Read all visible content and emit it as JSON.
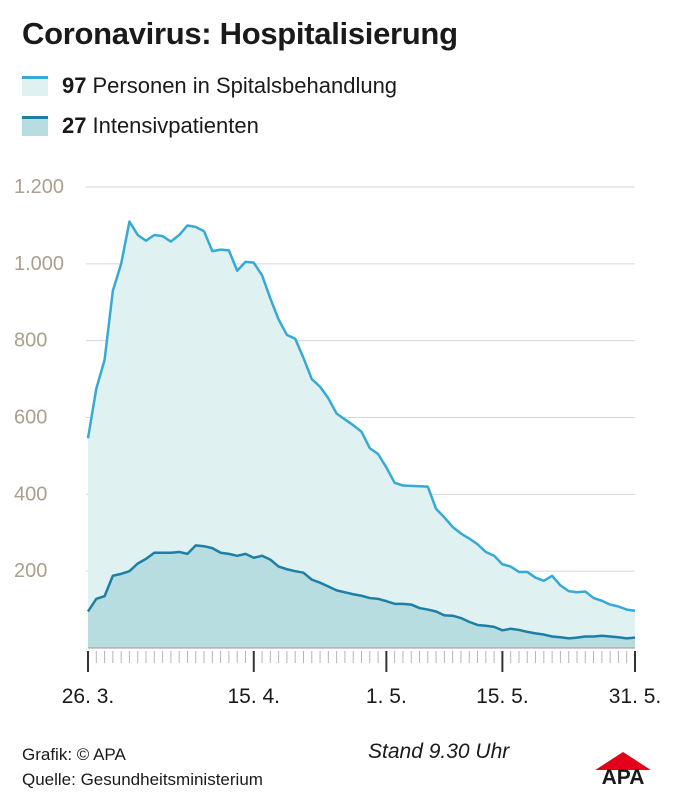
{
  "title": "Coronavirus: Hospitalisierung",
  "legend": [
    {
      "value": "97",
      "label": "Personen in Spitalsbehandlung"
    },
    {
      "value": "27",
      "label": "Intensivpatienten"
    }
  ],
  "footer": {
    "grafik": "Grafik: © APA",
    "quelle": "Quelle: Gesundheitsministerium",
    "stand": "Stand 9.30 Uhr"
  },
  "logo_text": "APA",
  "colors": {
    "hosp_line": "#36a9d6",
    "hosp_fill": "#dff2f1",
    "icu_line": "#1e7fa6",
    "icu_fill": "#b7dde1",
    "grid": "#d6d6d6",
    "ytick": "#a9a08e",
    "logo_red": "#e2001a"
  },
  "chart_data": {
    "type": "area",
    "ylim": [
      0,
      1200
    ],
    "yticks": [
      200,
      400,
      600,
      800,
      1000,
      1200
    ],
    "ytick_labels": [
      "200",
      "400",
      "600",
      "800",
      "1.000",
      "1.200"
    ],
    "xlim": [
      "2020-03-26",
      "2020-05-31"
    ],
    "xtick_labels": [
      {
        "date": "2020-03-26",
        "label": "26. 3."
      },
      {
        "date": "2020-04-15",
        "label": "15. 4."
      },
      {
        "date": "2020-05-01",
        "label": "1. 5."
      },
      {
        "date": "2020-05-15",
        "label": "15. 5."
      },
      {
        "date": "2020-05-31",
        "label": "31. 5."
      }
    ],
    "x": [
      "2020-03-26",
      "2020-03-27",
      "2020-03-28",
      "2020-03-29",
      "2020-03-30",
      "2020-03-31",
      "2020-04-01",
      "2020-04-02",
      "2020-04-03",
      "2020-04-04",
      "2020-04-05",
      "2020-04-06",
      "2020-04-07",
      "2020-04-08",
      "2020-04-09",
      "2020-04-10",
      "2020-04-11",
      "2020-04-12",
      "2020-04-13",
      "2020-04-14",
      "2020-04-15",
      "2020-04-16",
      "2020-04-17",
      "2020-04-18",
      "2020-04-19",
      "2020-04-20",
      "2020-04-21",
      "2020-04-22",
      "2020-04-23",
      "2020-04-24",
      "2020-04-25",
      "2020-04-26",
      "2020-04-27",
      "2020-04-28",
      "2020-04-29",
      "2020-04-30",
      "2020-05-01",
      "2020-05-02",
      "2020-05-03",
      "2020-05-04",
      "2020-05-05",
      "2020-05-06",
      "2020-05-07",
      "2020-05-08",
      "2020-05-09",
      "2020-05-10",
      "2020-05-11",
      "2020-05-12",
      "2020-05-13",
      "2020-05-14",
      "2020-05-15",
      "2020-05-16",
      "2020-05-17",
      "2020-05-18",
      "2020-05-19",
      "2020-05-20",
      "2020-05-21",
      "2020-05-22",
      "2020-05-23",
      "2020-05-24",
      "2020-05-25",
      "2020-05-26",
      "2020-05-27",
      "2020-05-28",
      "2020-05-29",
      "2020-05-30",
      "2020-05-31"
    ],
    "series": [
      {
        "name": "Personen in Spitalsbehandlung",
        "values": [
          546,
          675,
          750,
          930,
          1000,
          1110,
          1075,
          1060,
          1075,
          1072,
          1058,
          1075,
          1100,
          1096,
          1085,
          1033,
          1037,
          1035,
          982,
          1005,
          1003,
          970,
          910,
          855,
          815,
          805,
          755,
          700,
          680,
          650,
          610,
          595,
          580,
          563,
          520,
          505,
          470,
          430,
          423,
          422,
          421,
          420,
          362,
          340,
          315,
          298,
          285,
          270,
          250,
          240,
          218,
          212,
          198,
          198,
          183,
          175,
          188,
          163,
          148,
          145,
          147,
          130,
          123,
          113,
          108,
          100,
          97
        ]
      },
      {
        "name": "Intensivpatienten",
        "values": [
          95,
          128,
          135,
          188,
          193,
          200,
          220,
          232,
          248,
          248,
          248,
          250,
          245,
          267,
          265,
          260,
          248,
          245,
          240,
          245,
          235,
          240,
          230,
          212,
          205,
          200,
          196,
          178,
          170,
          160,
          150,
          145,
          140,
          136,
          130,
          128,
          122,
          115,
          115,
          113,
          104,
          100,
          95,
          85,
          84,
          78,
          68,
          60,
          58,
          55,
          46,
          50,
          47,
          42,
          38,
          35,
          30,
          28,
          25,
          27,
          30,
          30,
          32,
          30,
          28,
          25,
          27
        ]
      }
    ]
  }
}
